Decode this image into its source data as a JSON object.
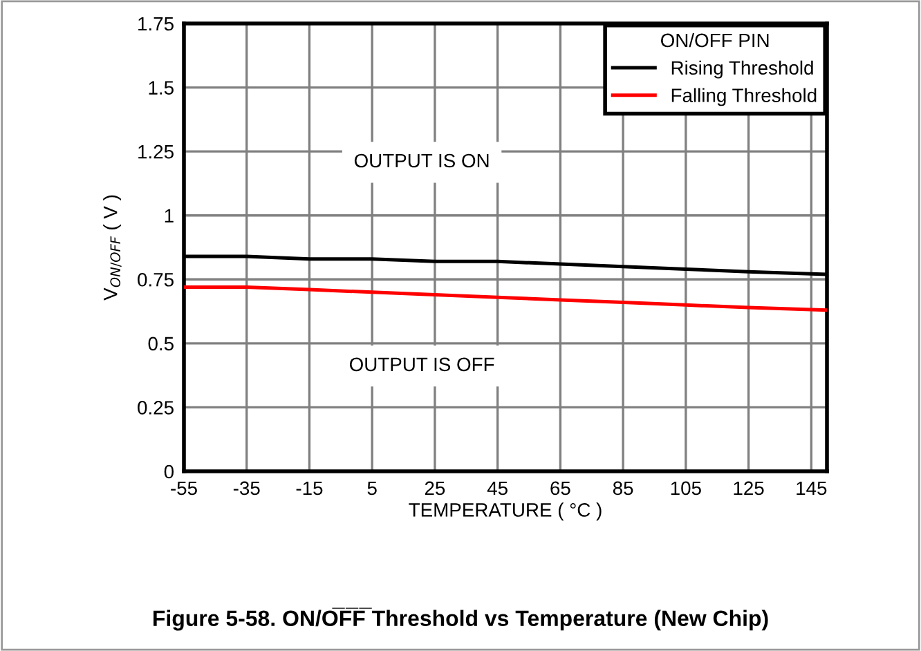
{
  "chart_data": {
    "type": "line",
    "title": "Figure 5-58. ON/O̅F̅F̅ Threshold vs Temperature (New Chip)",
    "xlabel": "TEMPERATURE ( °C )",
    "ylabel": "V$_{ON/OFF}$ ( V )",
    "legend_title": "ON/OFF PIN",
    "x": [
      -55,
      -35,
      -15,
      5,
      25,
      45,
      65,
      85,
      105,
      125,
      150
    ],
    "series": [
      {
        "name": "Rising Threshold",
        "color": "#000000",
        "values": [
          0.84,
          0.84,
          0.83,
          0.83,
          0.82,
          0.82,
          0.81,
          0.8,
          0.79,
          0.78,
          0.77
        ]
      },
      {
        "name": "Falling Threshold",
        "color": "#ff0000",
        "values": [
          0.72,
          0.72,
          0.71,
          0.7,
          0.69,
          0.68,
          0.67,
          0.66,
          0.65,
          0.64,
          0.63
        ]
      }
    ],
    "annotations": [
      "OUTPUT IS ON",
      "OUTPUT IS OFF"
    ],
    "xlim": [
      -55,
      150
    ],
    "xticks": [
      -55,
      -35,
      -15,
      5,
      25,
      45,
      65,
      85,
      105,
      125,
      145
    ],
    "ylim": [
      0,
      1.75
    ],
    "yticks": [
      0,
      0.25,
      0.5,
      0.75,
      1,
      1.25,
      1.5,
      1.75
    ],
    "grid": true,
    "legend": "top right",
    "marker": "none",
    "line_style": "solid"
  }
}
